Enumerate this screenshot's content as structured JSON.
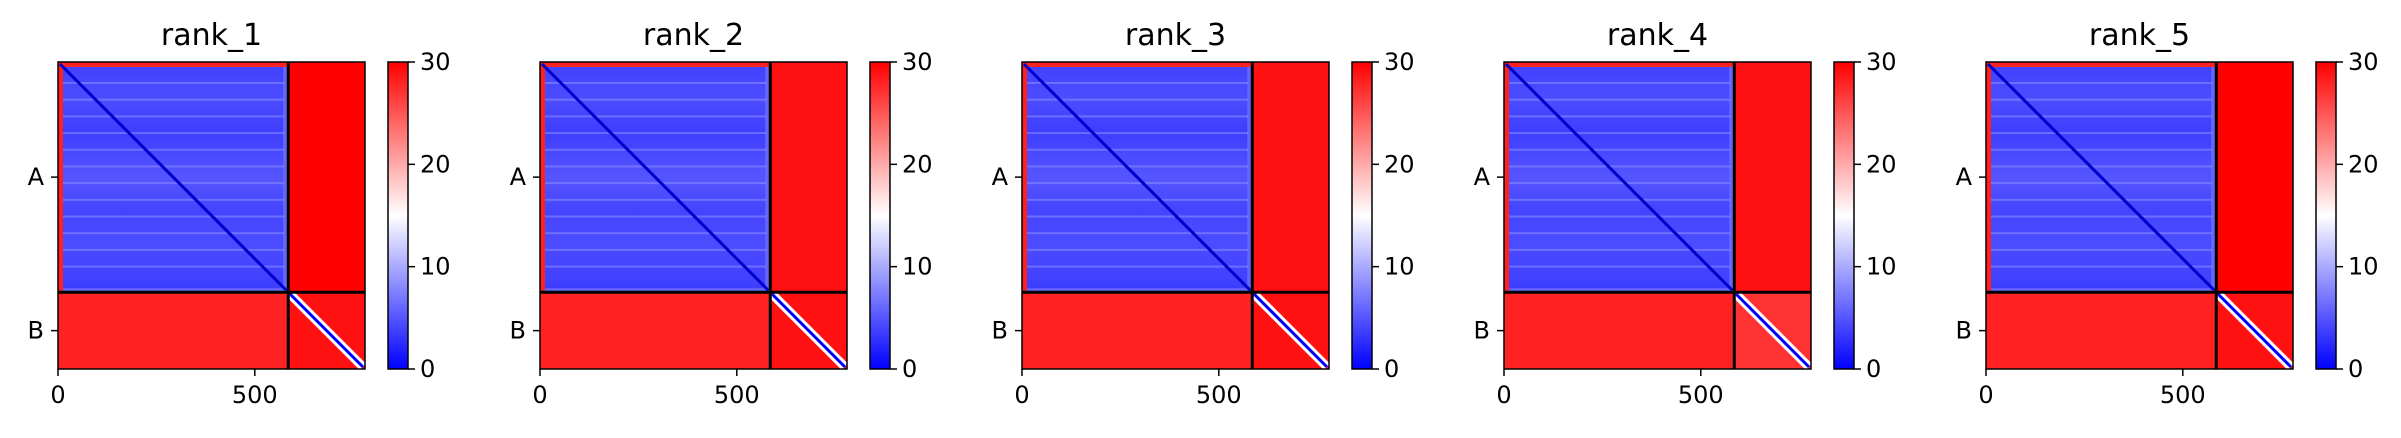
{
  "chart_data": [
    {
      "type": "heatmap",
      "title": "rank_1",
      "chains": [
        "A",
        "B"
      ],
      "chain_lengths": [
        585,
        195
      ],
      "x_ticks": [
        0,
        500
      ],
      "xlim": [
        0,
        780
      ],
      "colorbar": {
        "range": [
          0,
          30
        ],
        "ticks": [
          0,
          10,
          20,
          30
        ],
        "colormap": "bwr"
      },
      "block_means": {
        "A-A": 6,
        "A-B": 30,
        "B-A": 28,
        "B-B": 29
      }
    },
    {
      "type": "heatmap",
      "title": "rank_2",
      "chains": [
        "A",
        "B"
      ],
      "chain_lengths": [
        585,
        195
      ],
      "x_ticks": [
        0,
        500
      ],
      "xlim": [
        0,
        780
      ],
      "colorbar": {
        "range": [
          0,
          30
        ],
        "ticks": [
          0,
          10,
          20,
          30
        ],
        "colormap": "bwr"
      },
      "block_means": {
        "A-A": 6,
        "A-B": 29,
        "B-A": 28,
        "B-B": 29
      }
    },
    {
      "type": "heatmap",
      "title": "rank_3",
      "chains": [
        "A",
        "B"
      ],
      "chain_lengths": [
        585,
        195
      ],
      "x_ticks": [
        0,
        500
      ],
      "xlim": [
        0,
        780
      ],
      "colorbar": {
        "range": [
          0,
          30
        ],
        "ticks": [
          0,
          10,
          20,
          30
        ],
        "colormap": "bwr"
      },
      "block_means": {
        "A-A": 6,
        "A-B": 29,
        "B-A": 28,
        "B-B": 29
      }
    },
    {
      "type": "heatmap",
      "title": "rank_4",
      "chains": [
        "A",
        "B"
      ],
      "chain_lengths": [
        585,
        195
      ],
      "x_ticks": [
        0,
        500
      ],
      "xlim": [
        0,
        780
      ],
      "colorbar": {
        "range": [
          0,
          30
        ],
        "ticks": [
          0,
          10,
          20,
          30
        ],
        "colormap": "bwr"
      },
      "block_means": {
        "A-A": 6,
        "A-B": 29,
        "B-A": 28,
        "B-B": 27
      }
    },
    {
      "type": "heatmap",
      "title": "rank_5",
      "chains": [
        "A",
        "B"
      ],
      "chain_lengths": [
        585,
        195
      ],
      "x_ticks": [
        0,
        500
      ],
      "xlim": [
        0,
        780
      ],
      "colorbar": {
        "range": [
          0,
          30
        ],
        "ticks": [
          0,
          10,
          20,
          30
        ],
        "colormap": "bwr"
      },
      "block_means": {
        "A-A": 6,
        "A-B": 30,
        "B-A": 28,
        "B-B": 29
      }
    }
  ],
  "colors": {
    "low": "#0000ff",
    "mid": "#ffffff",
    "high": "#ff0000",
    "axis": "#000000"
  }
}
